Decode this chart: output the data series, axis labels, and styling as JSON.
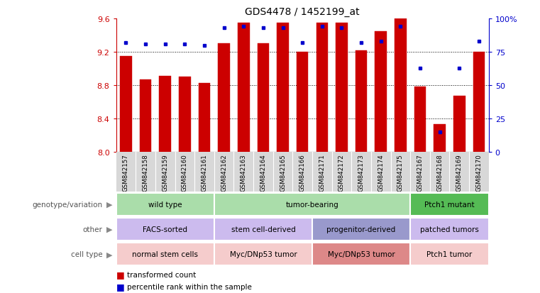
{
  "title": "GDS4478 / 1452199_at",
  "samples": [
    "GSM842157",
    "GSM842158",
    "GSM842159",
    "GSM842160",
    "GSM842161",
    "GSM842162",
    "GSM842163",
    "GSM842164",
    "GSM842165",
    "GSM842166",
    "GSM842171",
    "GSM842172",
    "GSM842173",
    "GSM842174",
    "GSM842175",
    "GSM842167",
    "GSM842168",
    "GSM842169",
    "GSM842170"
  ],
  "bar_values": [
    9.15,
    8.87,
    8.91,
    8.9,
    8.83,
    9.3,
    9.55,
    9.3,
    9.55,
    9.2,
    9.55,
    9.55,
    9.22,
    9.45,
    9.6,
    8.78,
    8.33,
    8.67,
    9.2
  ],
  "percentile": [
    82,
    81,
    81,
    81,
    80,
    93,
    94,
    93,
    93,
    82,
    94,
    93,
    82,
    83,
    94,
    63,
    15,
    63,
    83
  ],
  "ylim_left": [
    8.0,
    9.6
  ],
  "ylim_right": [
    0,
    100
  ],
  "yticks_left": [
    8.0,
    8.4,
    8.8,
    9.2,
    9.6
  ],
  "yticks_right": [
    0,
    25,
    50,
    75,
    100
  ],
  "bar_color": "#cc0000",
  "dot_color": "#0000cc",
  "bar_bottom": 8.0,
  "row_labels": [
    "genotype/variation",
    "other",
    "cell type"
  ],
  "genotype_segments": [
    {
      "label": "wild type",
      "start": 0,
      "end": 5,
      "color": "#aaddaa"
    },
    {
      "label": "tumor-bearing",
      "start": 5,
      "end": 15,
      "color": "#aaddaa"
    },
    {
      "label": "Ptch1 mutant",
      "start": 15,
      "end": 19,
      "color": "#55bb55"
    }
  ],
  "other_segments": [
    {
      "label": "FACS-sorted",
      "start": 0,
      "end": 5,
      "color": "#ccbbee"
    },
    {
      "label": "stem cell-derived",
      "start": 5,
      "end": 10,
      "color": "#ccbbee"
    },
    {
      "label": "progenitor-derived",
      "start": 10,
      "end": 15,
      "color": "#9999cc"
    },
    {
      "label": "patched tumors",
      "start": 15,
      "end": 19,
      "color": "#ccbbee"
    }
  ],
  "celltype_segments": [
    {
      "label": "normal stem cells",
      "start": 0,
      "end": 5,
      "color": "#f5cccc"
    },
    {
      "label": "Myc/DNp53 tumor",
      "start": 5,
      "end": 10,
      "color": "#f5cccc"
    },
    {
      "label": "Myc/DNp53 tumor",
      "start": 10,
      "end": 15,
      "color": "#dd8888"
    },
    {
      "label": "Ptch1 tumor",
      "start": 15,
      "end": 19,
      "color": "#f5cccc"
    }
  ],
  "xtick_bg": "#d8d8d8"
}
